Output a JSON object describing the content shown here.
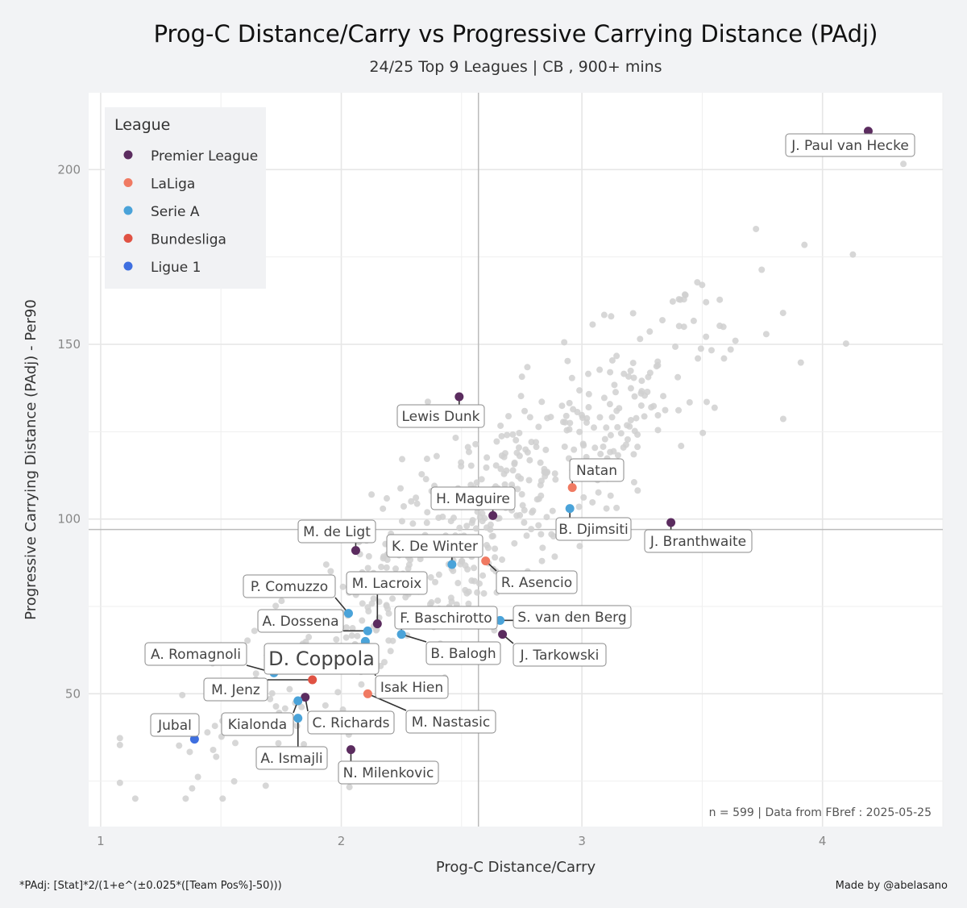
{
  "chart_data": {
    "type": "scatter",
    "title": "Prog-C Distance/Carry  vs  Progressive Carrying Distance (PAdj)",
    "subtitle": "24/25 Top 9 Leagues | CB , 900+ mins",
    "xlabel": "Prog-C Distance/Carry",
    "ylabel": "Progressive Carrying Distance (PAdj)  -  Per90",
    "xlim": [
      0.95,
      4.5
    ],
    "ylim": [
      12,
      222
    ],
    "xticks": [
      1,
      2,
      3,
      4
    ],
    "yticks": [
      50,
      100,
      150,
      200
    ],
    "grid": true,
    "reference_lines": {
      "x": 2.57,
      "y": 97
    },
    "legend": {
      "title": "League",
      "placement": "top-left",
      "entries": [
        {
          "name": "Premier League",
          "color": "#5b2c5f"
        },
        {
          "name": "LaLiga",
          "color": "#f07a62"
        },
        {
          "name": "Serie A",
          "color": "#4aa3d9"
        },
        {
          "name": "Bundesliga",
          "color": "#e05243"
        },
        {
          "name": "Ligue 1",
          "color": "#3e6fe0"
        }
      ]
    },
    "background_color": "#d0d0d0",
    "highlighted": [
      {
        "name": "J. Paul van Hecke",
        "league": "Premier League",
        "x": 4.19,
        "y": 211
      },
      {
        "name": "Lewis Dunk",
        "league": "Premier League",
        "x": 2.49,
        "y": 135
      },
      {
        "name": "Natan",
        "league": "LaLiga",
        "x": 2.96,
        "y": 109
      },
      {
        "name": "H. Maguire",
        "league": "Premier League",
        "x": 2.63,
        "y": 101
      },
      {
        "name": "B. Djimsiti",
        "league": "Serie A",
        "x": 2.95,
        "y": 103
      },
      {
        "name": "J. Branthwaite",
        "league": "Premier League",
        "x": 3.37,
        "y": 99
      },
      {
        "name": "M. de Ligt",
        "league": "Premier League",
        "x": 2.06,
        "y": 91
      },
      {
        "name": "K. De Winter",
        "league": "Serie A",
        "x": 2.46,
        "y": 87
      },
      {
        "name": "R. Asencio",
        "league": "LaLiga",
        "x": 2.6,
        "y": 88
      },
      {
        "name": "P. Comuzzo",
        "league": "Serie A",
        "x": 2.03,
        "y": 73
      },
      {
        "name": "M. Lacroix",
        "league": "Premier League",
        "x": 2.15,
        "y": 70
      },
      {
        "name": "A. Dossena",
        "league": "Serie A",
        "x": 2.11,
        "y": 68
      },
      {
        "name": "F. Baschirotto",
        "league": "Serie A",
        "x": 2.25,
        "y": 67
      },
      {
        "name": "S. van den Berg",
        "league": "Serie A",
        "x": 2.66,
        "y": 71
      },
      {
        "name": "J. Tarkowski",
        "league": "Premier League",
        "x": 2.67,
        "y": 67
      },
      {
        "name": "B. Balogh",
        "league": "Serie A",
        "x": 2.25,
        "y": 67
      },
      {
        "name": "A. Romagnoli",
        "league": "Serie A",
        "x": 1.72,
        "y": 56
      },
      {
        "name": "D. Coppola",
        "league": "Premier League",
        "x": 1.78,
        "y": 58
      },
      {
        "name": "Isak Hien",
        "league": "Serie A",
        "x": 2.1,
        "y": 65
      },
      {
        "name": "M. Jenz",
        "league": "Bundesliga",
        "x": 1.88,
        "y": 54
      },
      {
        "name": "M. Nastasic",
        "league": "LaLiga",
        "x": 2.11,
        "y": 50
      },
      {
        "name": "C. Richards",
        "league": "Premier League",
        "x": 1.85,
        "y": 49
      },
      {
        "name": "Kialonda",
        "league": "Serie A",
        "x": 1.82,
        "y": 48
      },
      {
        "name": "Jubal",
        "league": "Ligue 1",
        "x": 1.39,
        "y": 37
      },
      {
        "name": "A. Ismajli",
        "league": "Serie A",
        "x": 1.82,
        "y": 43
      },
      {
        "name": "N. Milenkovic",
        "league": "Premier League",
        "x": 2.04,
        "y": 34
      }
    ],
    "sample_note": "n =  599  | Data from  FBref : 2025-05-25"
  },
  "footer": {
    "footnote": "*PAdj: [Stat]*2/(1+e^(±0.025*([Team Pos%]-50)))",
    "credit": "Made by @abelasano"
  }
}
